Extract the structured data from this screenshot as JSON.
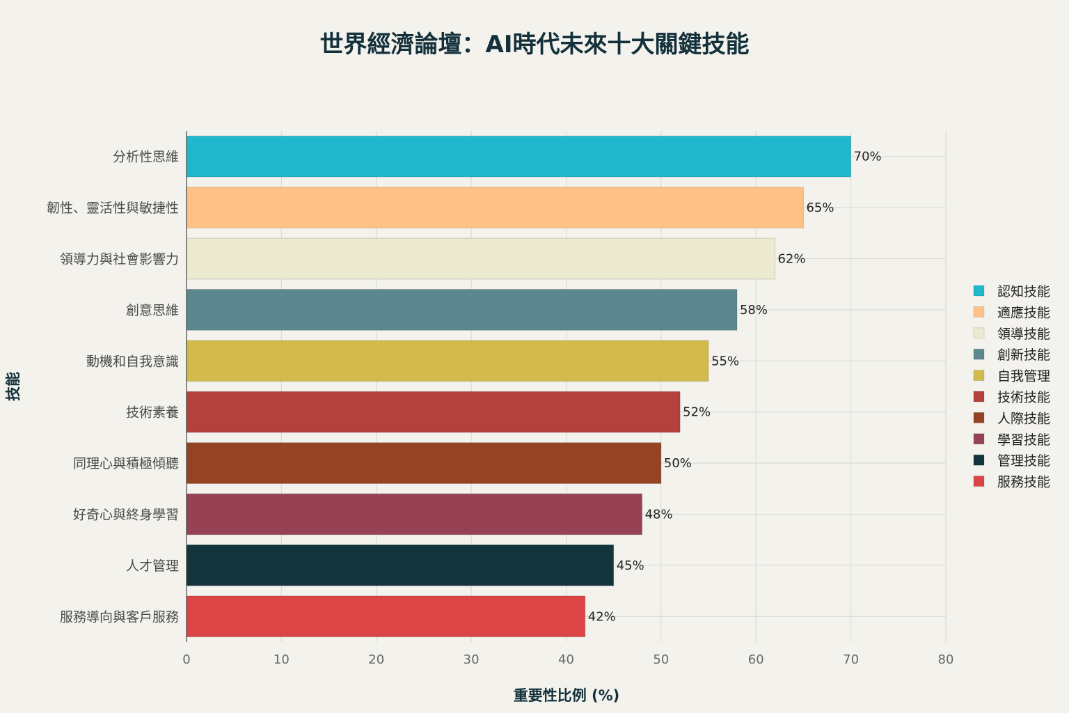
{
  "chart_data": {
    "type": "bar",
    "orientation": "horizontal",
    "title": "世界經濟論壇：AI時代未來十大關鍵技能",
    "xlabel": "重要性比例 (%)",
    "ylabel": "技能",
    "xlim": [
      0,
      80
    ],
    "xticks": [
      0,
      10,
      20,
      30,
      40,
      50,
      60,
      70,
      80
    ],
    "grid": true,
    "legend_position": "right",
    "categories": [
      "分析性思維",
      "韌性、靈活性與敏捷性",
      "領導力與社會影響力",
      "創意思維",
      "動機和自我意識",
      "技術素養",
      "同理心與積極傾聽",
      "好奇心與終身學習",
      "人才管理",
      "服務導向與客戶服務"
    ],
    "values": [
      70,
      65,
      62,
      58,
      55,
      52,
      50,
      48,
      45,
      42
    ],
    "value_labels": [
      "70%",
      "65%",
      "62%",
      "58%",
      "55%",
      "52%",
      "50%",
      "48%",
      "45%",
      "42%"
    ],
    "groups": [
      "認知技能",
      "適應技能",
      "領導技能",
      "創新技能",
      "自我管理",
      "技術技能",
      "人際技能",
      "學習技能",
      "管理技能",
      "服務技能"
    ],
    "colors": [
      "#1fb8cd",
      "#ffc185",
      "#eceacf",
      "#5d878f",
      "#d2ba4c",
      "#b4413c",
      "#944423",
      "#964254",
      "#13343b",
      "#db4545"
    ]
  }
}
